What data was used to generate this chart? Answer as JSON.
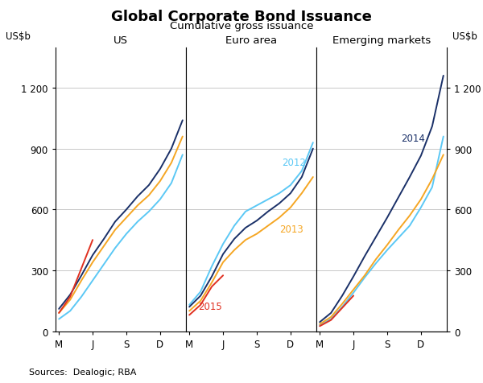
{
  "title": "Global Corporate Bond Issuance",
  "subtitle": "Cumulative gross issuance",
  "ylabel_left": "US$b",
  "ylabel_right": "US$b",
  "source": "Sources:  Dealogic; RBA",
  "panels": [
    "US",
    "Euro area",
    "Emerging markets"
  ],
  "xtick_labels": [
    "M",
    "J",
    "S",
    "D"
  ],
  "ytick_values": [
    0,
    300,
    600,
    900,
    1200
  ],
  "ytick_labels": [
    "0",
    "300",
    "600",
    "900",
    "1 200"
  ],
  "ylim": [
    0,
    1400
  ],
  "colors": {
    "2012": "#5bc8f5",
    "2013": "#f5a623",
    "2014": "#1a3068",
    "2015": "#e03020"
  },
  "us": {
    "2012": [
      60,
      100,
      170,
      250,
      330,
      410,
      480,
      540,
      590,
      650,
      730,
      870
    ],
    "2013": [
      90,
      155,
      250,
      340,
      420,
      500,
      560,
      620,
      670,
      740,
      830,
      960
    ],
    "2014": [
      110,
      180,
      275,
      375,
      455,
      540,
      600,
      665,
      720,
      800,
      900,
      1040
    ],
    "2015": [
      90,
      170,
      310,
      450
    ]
  },
  "euro": {
    "2012": [
      130,
      195,
      320,
      430,
      520,
      590,
      620,
      650,
      680,
      720,
      790,
      930
    ],
    "2013": [
      100,
      150,
      240,
      340,
      400,
      450,
      480,
      520,
      560,
      610,
      680,
      760
    ],
    "2014": [
      120,
      175,
      270,
      380,
      455,
      510,
      545,
      590,
      630,
      680,
      760,
      900
    ],
    "2015": [
      80,
      130,
      220,
      275
    ]
  },
  "em": {
    "2012": [
      30,
      60,
      120,
      190,
      265,
      335,
      400,
      460,
      520,
      610,
      710,
      960
    ],
    "2013": [
      35,
      70,
      135,
      205,
      275,
      355,
      425,
      500,
      570,
      650,
      750,
      870
    ],
    "2014": [
      45,
      90,
      175,
      270,
      370,
      465,
      560,
      660,
      760,
      865,
      1010,
      1260
    ],
    "2015": [
      25,
      55,
      115,
      175
    ]
  },
  "anno_euro": {
    "2012": [
      8.2,
      820
    ],
    "2013": [
      8.0,
      490
    ],
    "2015": [
      0.8,
      110
    ]
  },
  "anno_em": {
    "2014": [
      7.2,
      940
    ]
  }
}
